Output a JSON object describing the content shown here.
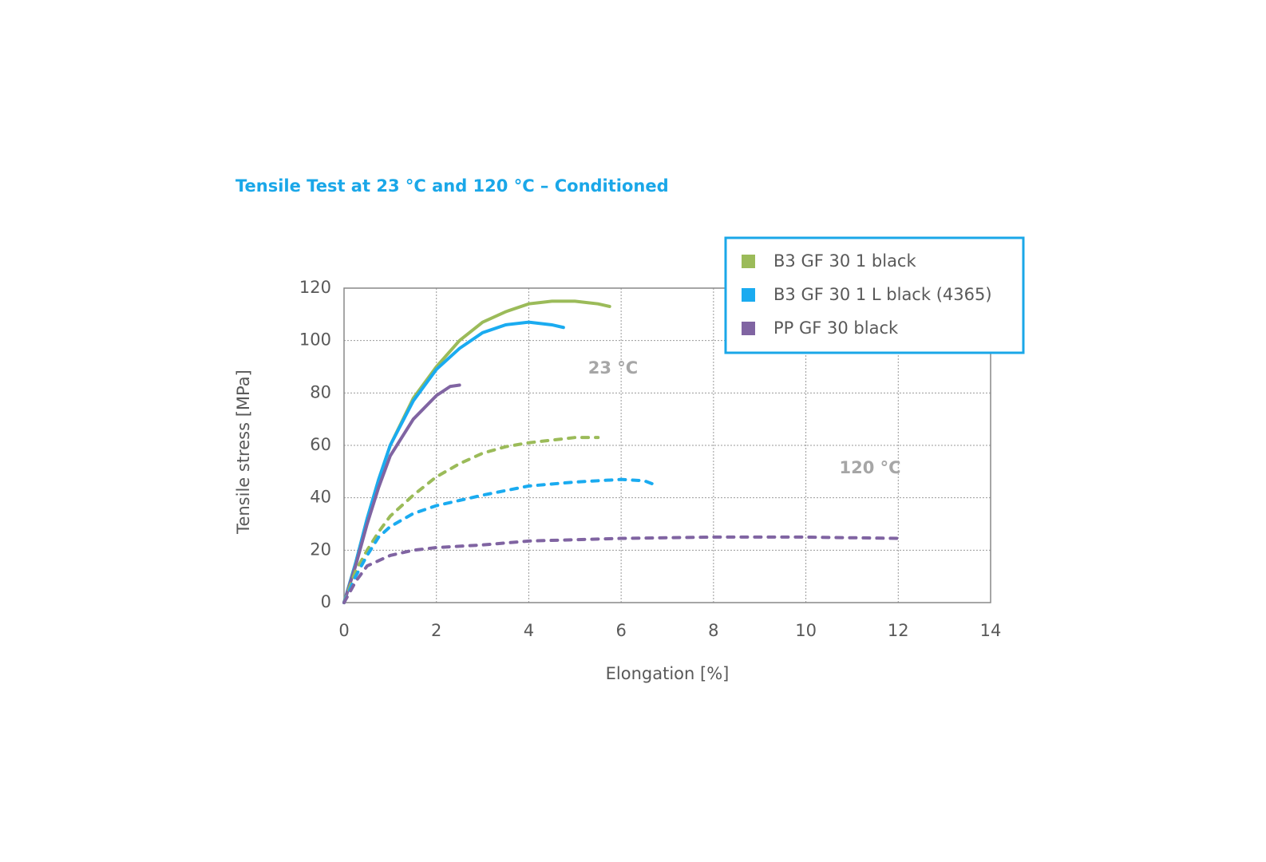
{
  "chart_data": {
    "type": "line",
    "title": "Tensile Test at 23 °C and 120 °C – Conditioned",
    "x_label": "Elongation [%]",
    "y_label": "Tensile stress [MPa]",
    "annotations": [
      "23 °C",
      "120 °C"
    ],
    "xlim": [
      0,
      14
    ],
    "xticks": [
      0,
      2,
      4,
      6,
      8,
      10,
      12,
      14
    ],
    "ylim": [
      0,
      120
    ],
    "yticks": [
      0,
      20,
      40,
      60,
      80,
      100,
      120
    ],
    "grid": true,
    "legend": "top-right",
    "series": [
      {
        "name": "B3 GF 30 1 black",
        "color": "#9bbb59",
        "dashed": false,
        "x": [
          0,
          0.25,
          0.5,
          0.75,
          1,
          1.5,
          2,
          2.5,
          3,
          3.5,
          4,
          4.5,
          5,
          5.5,
          5.75
        ],
        "values": [
          0,
          15,
          32,
          47,
          60,
          78,
          90,
          100,
          107,
          111,
          114,
          115,
          115,
          114,
          113
        ]
      },
      {
        "name": "B3 GF 30 1 L black (4365)",
        "color": "#1aabf0",
        "dashed": false,
        "x": [
          0,
          0.25,
          0.5,
          0.75,
          1,
          1.5,
          2,
          2.5,
          3,
          3.5,
          4,
          4.5,
          4.75
        ],
        "values": [
          0,
          15,
          32,
          47,
          60,
          77,
          89,
          97,
          103,
          106,
          107,
          106,
          105
        ]
      },
      {
        "name": "PP GF 30 black",
        "color": "#8064a2",
        "dashed": false,
        "x": [
          0,
          0.25,
          0.5,
          0.75,
          1,
          1.5,
          2,
          2.3,
          2.5
        ],
        "values": [
          0,
          14,
          30,
          44,
          56,
          70,
          79,
          82.5,
          83
        ]
      },
      {
        "color": "#9bbb59",
        "dashed": true,
        "x": [
          0,
          0.25,
          0.5,
          0.75,
          1,
          1.5,
          2,
          2.5,
          3,
          3.5,
          4,
          4.5,
          5,
          5.5
        ],
        "values": [
          0,
          12,
          20,
          27,
          33,
          41,
          48,
          53,
          57,
          59.5,
          61,
          62,
          63,
          63
        ]
      },
      {
        "color": "#1aabf0",
        "dashed": true,
        "x": [
          0,
          0.25,
          0.5,
          0.75,
          1,
          1.5,
          2,
          3,
          4,
          5,
          6,
          6.5,
          6.8
        ],
        "values": [
          0,
          10,
          18,
          25,
          29,
          34,
          37,
          41,
          44.5,
          46,
          47,
          46.5,
          44.5
        ]
      },
      {
        "color": "#8064a2",
        "dashed": true,
        "x": [
          0,
          0.25,
          0.5,
          1,
          1.5,
          2,
          3,
          4,
          6,
          8,
          10,
          12
        ],
        "values": [
          0,
          8,
          14,
          18,
          20,
          21,
          22,
          23.5,
          24.5,
          25,
          25,
          24.5
        ]
      }
    ]
  }
}
